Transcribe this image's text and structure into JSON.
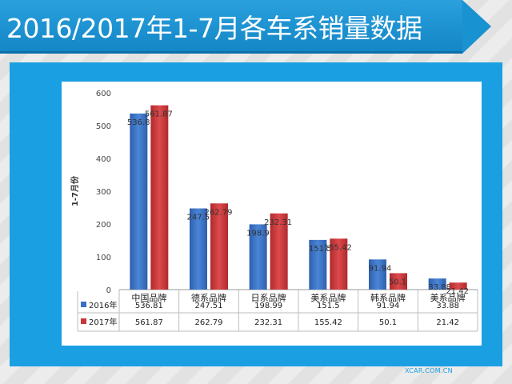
{
  "header": {
    "title": "2016/2017年1-7月各车系销量数据"
  },
  "logo": {
    "main": "爱卡汽车",
    "sub": "XCAR.COM.CN"
  },
  "colors": {
    "series_2016": "#3a6fc1",
    "series_2017": "#c93538",
    "panel": "#1b9fe3"
  },
  "chart_data": {
    "type": "bar",
    "title": "",
    "xlabel": "",
    "ylabel": "1-7月份",
    "ylim": [
      0,
      600
    ],
    "yticks": [
      0,
      100,
      200,
      300,
      400,
      500,
      600
    ],
    "categories": [
      "中国品牌",
      "德系品牌",
      "日系品牌",
      "美系品牌",
      "韩系品牌",
      "美系品牌"
    ],
    "series": [
      {
        "name": "2016年",
        "values": [
          536.81,
          247.51,
          198.99,
          151.5,
          91.94,
          33.88
        ],
        "labels": [
          "536.81",
          "247.51",
          "198.99",
          "151.5",
          "91.94",
          "33.88"
        ]
      },
      {
        "name": "2017年",
        "values": [
          561.87,
          262.79,
          232.31,
          155.42,
          50.1,
          21.42
        ],
        "labels": [
          "561.87",
          "262.79",
          "232.31",
          "155.42",
          "50.1",
          "21.42"
        ]
      }
    ],
    "data_table": true,
    "grid": false,
    "legend": "data-table"
  }
}
